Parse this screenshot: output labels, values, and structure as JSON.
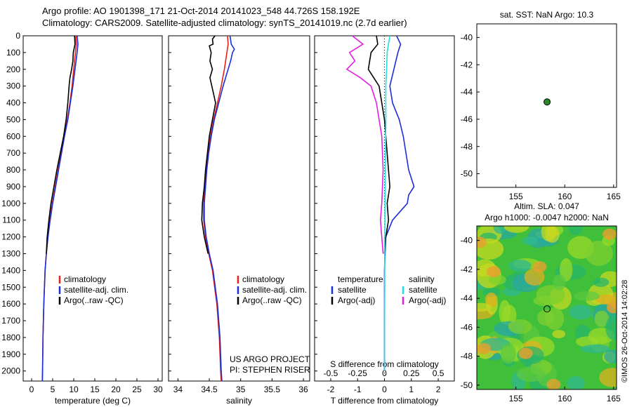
{
  "header": {
    "line1": "Argo profile: AO 1901398_171 21-Oct-2014 20141023_548 44.726S 158.192E",
    "line2": "Climatology: CARS2009. Satellite-adjusted climatology: synTS_20141019.nc (2.7d earlier)"
  },
  "colors": {
    "climatology": "#e8201a",
    "satellite": "#1a2fd8",
    "argo": "#000000",
    "sal_sat": "#22e0e0",
    "sal_argo": "#e020e0",
    "marker": "#2a8a2a"
  },
  "chart_data": [
    {
      "type": "line",
      "id": "temperature",
      "xlabel": "temperature (deg C)",
      "ylabel": "",
      "xlim": [
        -2,
        31
      ],
      "ylim": [
        2060,
        0
      ],
      "xticks": [
        0,
        5,
        10,
        15,
        20,
        25,
        30
      ],
      "yticks": [
        0,
        100,
        200,
        300,
        400,
        500,
        600,
        700,
        800,
        900,
        1000,
        1100,
        1200,
        1300,
        1400,
        1500,
        1600,
        1700,
        1800,
        1900,
        2000
      ],
      "legend": [
        "climatology",
        "satellite-adj. clim.",
        "Argo(..raw -QC)"
      ],
      "series": [
        {
          "name": "climatology",
          "depth": [
            0,
            50,
            100,
            200,
            300,
            400,
            500,
            600,
            700,
            800,
            900,
            1000,
            1100,
            1200,
            1300,
            1400,
            1600,
            1800,
            2000,
            2060
          ],
          "values": [
            10.5,
            10.6,
            10.4,
            10.0,
            9.6,
            9.1,
            8.5,
            7.7,
            7.0,
            6.3,
            5.6,
            4.9,
            4.3,
            3.8,
            3.5,
            3.2,
            2.9,
            2.7,
            2.6,
            2.55
          ]
        },
        {
          "name": "satellite-adj. clim.",
          "depth": [
            0,
            50,
            100,
            200,
            300,
            400,
            500,
            600,
            700,
            800,
            900,
            1000,
            1100,
            1200,
            1300,
            1400,
            1600,
            1800,
            2000,
            2060
          ],
          "values": [
            10.8,
            11.0,
            10.8,
            10.3,
            9.8,
            9.2,
            8.6,
            7.8,
            7.1,
            6.4,
            5.7,
            5.0,
            4.4,
            3.9,
            3.5,
            3.2,
            2.9,
            2.7,
            2.6,
            2.55
          ]
        },
        {
          "name": "Argo(..raw -QC)",
          "depth": [
            0,
            50,
            100,
            150,
            200,
            250,
            300,
            400,
            500,
            600,
            700,
            800,
            900,
            1000,
            1100,
            1200,
            1300
          ],
          "values": [
            10.2,
            10.3,
            9.9,
            9.8,
            9.5,
            9.1,
            8.9,
            8.6,
            8.2,
            7.6,
            6.8,
            6.0,
            5.3,
            4.6,
            4.1,
            3.7,
            3.5
          ]
        }
      ]
    },
    {
      "type": "line",
      "id": "salinity",
      "xlabel": "salinity",
      "ylabel": "",
      "xlim": [
        33.85,
        36.1
      ],
      "ylim": [
        2060,
        0
      ],
      "xticks": [
        34,
        34.5,
        35,
        35.5,
        36
      ],
      "legend": [
        "climatology",
        "satellite-adj. clim.",
        "Argo(..raw -QC)"
      ],
      "annotation": [
        "US ARGO PROJECT",
        "PI: STEPHEN RISER"
      ],
      "series": [
        {
          "name": "climatology",
          "depth": [
            0,
            50,
            100,
            200,
            300,
            400,
            500,
            600,
            700,
            800,
            900,
            1000,
            1100,
            1200,
            1300,
            1400,
            1600,
            1800,
            2000,
            2060
          ],
          "values": [
            34.79,
            34.8,
            34.78,
            34.74,
            34.69,
            34.63,
            34.57,
            34.52,
            34.48,
            34.45,
            34.43,
            34.41,
            34.41,
            34.44,
            34.49,
            34.55,
            34.62,
            34.66,
            34.68,
            34.69
          ]
        },
        {
          "name": "satellite-adj. clim.",
          "depth": [
            0,
            50,
            80,
            100,
            150,
            200,
            300,
            400,
            500,
            600,
            700,
            800,
            900,
            1000,
            1100,
            1200,
            1300,
            1400,
            1600,
            1800,
            2000,
            2060
          ],
          "values": [
            34.83,
            34.85,
            34.9,
            34.87,
            34.84,
            34.8,
            34.72,
            34.65,
            34.58,
            34.53,
            34.49,
            34.46,
            34.44,
            34.42,
            34.42,
            34.45,
            34.5,
            34.56,
            34.63,
            34.67,
            34.69,
            34.7
          ]
        },
        {
          "name": "Argo(..raw -QC)",
          "depth": [
            0,
            20,
            50,
            60,
            100,
            150,
            200,
            250,
            300,
            400,
            500,
            600,
            700,
            800,
            900,
            1000,
            1100,
            1200,
            1300
          ],
          "values": [
            34.59,
            34.55,
            34.56,
            34.5,
            34.53,
            34.51,
            34.55,
            34.51,
            34.54,
            34.6,
            34.55,
            34.5,
            34.47,
            34.44,
            34.42,
            34.39,
            34.38,
            34.42,
            34.48
          ]
        }
      ]
    },
    {
      "type": "line",
      "id": "difference",
      "xlabel": "T difference from climatology",
      "xlabel2": "S difference from climatology",
      "ylabel": "",
      "xlim": [
        -2.6,
        2.6
      ],
      "ylim": [
        2060,
        0
      ],
      "xticks": [
        -2,
        -1,
        0,
        1,
        2
      ],
      "xticks2": [
        -0.5,
        -0.25,
        0,
        0.25,
        0.5
      ],
      "legend_headers": [
        "temperature",
        "salinity"
      ],
      "legend": [
        "satellite",
        "Argo(-adj)",
        "satellite",
        "Argo(-adj)"
      ],
      "series": [
        {
          "name": "satellite",
          "kind": "temperature",
          "depth": [
            0,
            50,
            100,
            200,
            300,
            400,
            500,
            600,
            700,
            800,
            850,
            900,
            950,
            1000,
            1100,
            1200,
            1400,
            2000
          ],
          "values": [
            0.45,
            0.6,
            0.5,
            0.35,
            0.2,
            0.3,
            0.55,
            0.7,
            0.8,
            0.9,
            1.0,
            1.1,
            0.9,
            0.85,
            0.3,
            0.05,
            0,
            0
          ]
        },
        {
          "name": "Argo(-adj)",
          "kind": "temperature",
          "depth": [
            0,
            50,
            100,
            200,
            300,
            400,
            500,
            700,
            900,
            1000,
            1100,
            1200,
            1300
          ],
          "values": [
            -0.3,
            -0.25,
            -0.5,
            -0.6,
            -0.2,
            -0.1,
            0,
            0.1,
            0.2,
            0.1,
            0.15,
            0.05,
            0
          ]
        },
        {
          "name": "satellite",
          "kind": "salinity",
          "depth": [
            0,
            100,
            200,
            300,
            500,
            800,
            1000,
            1200,
            1500,
            1800,
            2000
          ],
          "values": [
            0.2,
            0.1,
            0.08,
            0.05,
            0.05,
            0.03,
            0.02,
            0.01,
            0.01,
            0,
            0
          ]
        },
        {
          "name": "Argo(-adj)",
          "kind": "salinity",
          "depth": [
            0,
            50,
            100,
            150,
            200,
            250,
            300,
            400,
            500,
            600,
            800,
            1000,
            1100,
            1200,
            1300
          ],
          "values": [
            -1.2,
            -0.8,
            -1.3,
            -1.1,
            -1.4,
            -0.9,
            -0.5,
            -0.3,
            -0.2,
            -0.1,
            -0.05,
            -0.1,
            -0.15,
            -0.1,
            -0.05
          ]
        }
      ]
    },
    {
      "type": "scatter",
      "id": "sst_map",
      "title": "sat. SST: NaN Argo: 10.3",
      "xlim": [
        151,
        165.3
      ],
      "ylim": [
        -51,
        -39
      ],
      "xticks": [
        155,
        160,
        165
      ],
      "yticks": [
        -40,
        -42,
        -44,
        -46,
        -48,
        -50
      ],
      "points": [
        {
          "x": 158.19,
          "y": -44.73
        }
      ]
    },
    {
      "type": "heatmap",
      "id": "sla_map",
      "title": "Altim. SLA: 0.047",
      "subtitle": "Argo h1000: -0.0047 h2000: NaN",
      "xlim": [
        151,
        165.3
      ],
      "ylim": [
        -50.3,
        -39
      ],
      "xticks": [
        155,
        160,
        165
      ],
      "yticks": [
        -40,
        -42,
        -44,
        -46,
        -48,
        -50
      ],
      "points": [
        {
          "x": 158.19,
          "y": -44.73
        }
      ]
    }
  ],
  "side_label": "©IMOS 26-Oct-2014 14:02:28"
}
